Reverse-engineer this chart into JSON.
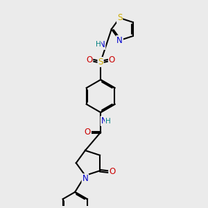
{
  "bg_color": "#ebebeb",
  "atom_colors": {
    "C": "#000000",
    "N": "#0000cc",
    "O": "#cc0000",
    "S": "#ccaa00",
    "H": "#008080"
  },
  "bond_color": "#000000",
  "bond_width": 1.5,
  "font_size": 8.5,
  "font_size_h": 7.5
}
